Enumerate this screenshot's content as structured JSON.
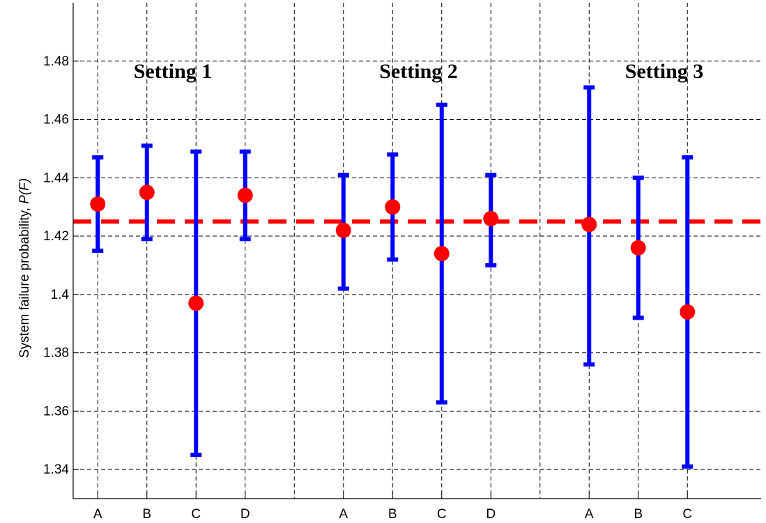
{
  "chart_data": {
    "type": "scatter",
    "ylabel": "System failure probability,",
    "ylabel_var": "P(F)",
    "ylim": [
      1.33,
      1.5
    ],
    "y_ticks": [
      {
        "value": 1.34,
        "label": "1.34"
      },
      {
        "value": 1.36,
        "label": "1.36"
      },
      {
        "value": 1.38,
        "label": "1.38"
      },
      {
        "value": 1.4,
        "label": "1.4"
      },
      {
        "value": 1.42,
        "label": "1.42"
      },
      {
        "value": 1.44,
        "label": "1.44"
      },
      {
        "value": 1.46,
        "label": "1.46"
      },
      {
        "value": 1.48,
        "label": "1.48"
      }
    ],
    "reference_line": {
      "value": 1.425,
      "style": "dashed",
      "color": "#ff0000"
    },
    "grid": true,
    "groups": [
      {
        "label": "Setting 1",
        "points": [
          {
            "category": "A",
            "value": 1.431,
            "lower": 1.415,
            "upper": 1.447
          },
          {
            "category": "B",
            "value": 1.435,
            "lower": 1.419,
            "upper": 1.451
          },
          {
            "category": "C",
            "value": 1.397,
            "lower": 1.345,
            "upper": 1.449
          },
          {
            "category": "D",
            "value": 1.434,
            "lower": 1.419,
            "upper": 1.449
          }
        ]
      },
      {
        "label": "Setting 2",
        "points": [
          {
            "category": "A",
            "value": 1.422,
            "lower": 1.402,
            "upper": 1.441
          },
          {
            "category": "B",
            "value": 1.43,
            "lower": 1.412,
            "upper": 1.448
          },
          {
            "category": "C",
            "value": 1.414,
            "lower": 1.363,
            "upper": 1.465
          },
          {
            "category": "D",
            "value": 1.426,
            "lower": 1.41,
            "upper": 1.441
          }
        ]
      },
      {
        "label": "Setting 3",
        "points": [
          {
            "category": "A",
            "value": 1.424,
            "lower": 1.376,
            "upper": 1.471
          },
          {
            "category": "B",
            "value": 1.416,
            "lower": 1.392,
            "upper": 1.44
          },
          {
            "category": "C",
            "value": 1.394,
            "lower": 1.341,
            "upper": 1.447
          }
        ]
      }
    ],
    "colors": {
      "error_bar": "#0000ff",
      "marker": "#ff0000",
      "grid": "#000000"
    }
  }
}
